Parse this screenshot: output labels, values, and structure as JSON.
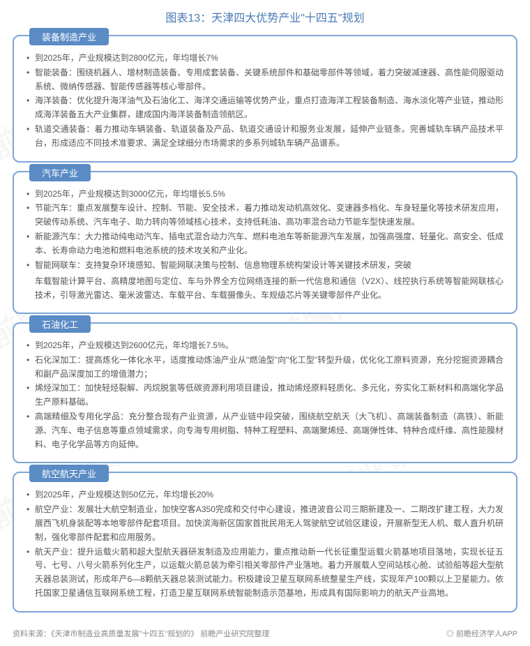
{
  "title": "图表13：天津四大优势产业\"十四五\"规划",
  "title_color": "#4a7ab5",
  "label_bg": "#5a8bc4",
  "border_color": "#7ba5d6",
  "watermark_text": "前瞻产业研究院",
  "sections": [
    {
      "label": "装备制造产业",
      "items": [
        "到2025年，产业规模达到2800亿元，年均增长7%",
        "智能装备：围绕机器人、增材制造装备、专用成套装备、关键系统部件和基础零部件等领域，着力突破减速器、高性能伺服驱动系统、微纳传感器、智能传感器等核心零部件。",
        "海洋装备：优化提升海洋油气及石油化工、海洋交通运输等优势产业，重点打造海洋工程装备制造、海水淡化等产业链，推动形成海洋装备五大产业集群，建成国内海洋装备制造领航区。",
        "轨道交通装备：着力推动车辆装备、轨道装备及产品、轨道交通设计和服务业发展，延伸产业链条。完善城轨车辆产品技术平台，形成适应不同技术准要求、满足全球细分市场需求的多系列城轨车辆产品谱系。"
      ]
    },
    {
      "label": "汽车产业",
      "items": [
        "到2025年，产业规模达到3000亿元，年均增长5.5%",
        "节能汽车：重点发展整车设计、控制、节能、安全技术，着力推动发动机高效化、变速器多档化、车身轻量化等技术研发应用，突破传动系统、汽车电子、助力转向等领域核心技术，支持低耗油、高功率混合动力节能车型快速发展。",
        "新能源汽车：大力推动纯电动汽车、插电式混合动力汽车、燃料电池车等新能源汽车发展，加强高强度、轻量化、高安全、低成本、长寿命动力电池和燃料电池系统的技术攻关和产业化。",
        "智能网联车：支持复杂环境感知、智能网联决策与控制、信息物理系统构架设计等关键技术研发，突破"
      ],
      "trailing": "车载智能计算平台、高精度地图与定位、车与外界全方位网络连接的新一代信息和通信（V2X）、线控执行系统等智能网联核心技术，引导激光雷达、毫米波雷达、车载平台、车载摄像头、车规级芯片等关键零部件产业化。"
    },
    {
      "label": "石油化工",
      "items": [
        "到2025年，产业规模达到2600亿元，年均增长7.5%。",
        "石化深加工：提高炼化一体化水平，适度推动炼油产业从\"燃油型\"向\"化工型\"转型升级，优化化工原料资源，充分挖掘资源耦合和副产品深度加工的增值潜力；",
        "烯烃深加工：加快轻烃裂解、丙烷脱氢等低碳资源利用项目建设，推动烯烃原料轻质化、多元化，夯实化工新材料和高端化学品生产原料基础。",
        "高端精细及专用化学品：充分整合现有产业资源，从产业链中段突破，围绕航空航天（大飞机）、高端装备制造（高铁）、新能源、汽车、电子信息等重点领域需求，向专海专用树脂、特种工程塑料、高端聚烯烃、高端弹性体、特种合成纤维、高性能膜材料、电子化学品等方向延伸。"
      ]
    },
    {
      "label": "航空航天产业",
      "items": [
        "到2025年，产业规模达到50亿元，年均增长20%",
        "航空产业：发展壮大航空制造业，加快空客A350完成和交付中心建设，推进波音公司三期新建及一、二期改扩建工程，大力发展西飞机身装配等本地零部件配套项目。加快滨海新区国家首批民用无人驾驶航空试验区建设，开展新型无人机、载人直升机研制，强化零部件配套和应用服务。",
        "航天产业：提升运载火箭和超大型航天器研发制造及应用能力，重点推动新一代长征重型运载火箭基地项目落地，实现长征五号、七号、八号火箭系列化生产，以运载火箭总装为牵引相关零部件产业落地。着力开展载人空间站核心舱、试验船等超大型航天器总装测试，形成年产6—8颗航天器总装测试能力。积极建设卫星互联网系统整星生产线，实现年产100颗以上卫星能力。依托国家卫星通信互联网系统工程，打造卫星互联网系统智能制造示范基地，形成具有国际影响力的航天产业高地。"
      ]
    }
  ],
  "footer_left": "资料来源：《天津市制造业高质量发展\"十四五\"规划的》 前瞻产业研究院整理",
  "footer_right": "◎ 前瞻经济学人APP"
}
